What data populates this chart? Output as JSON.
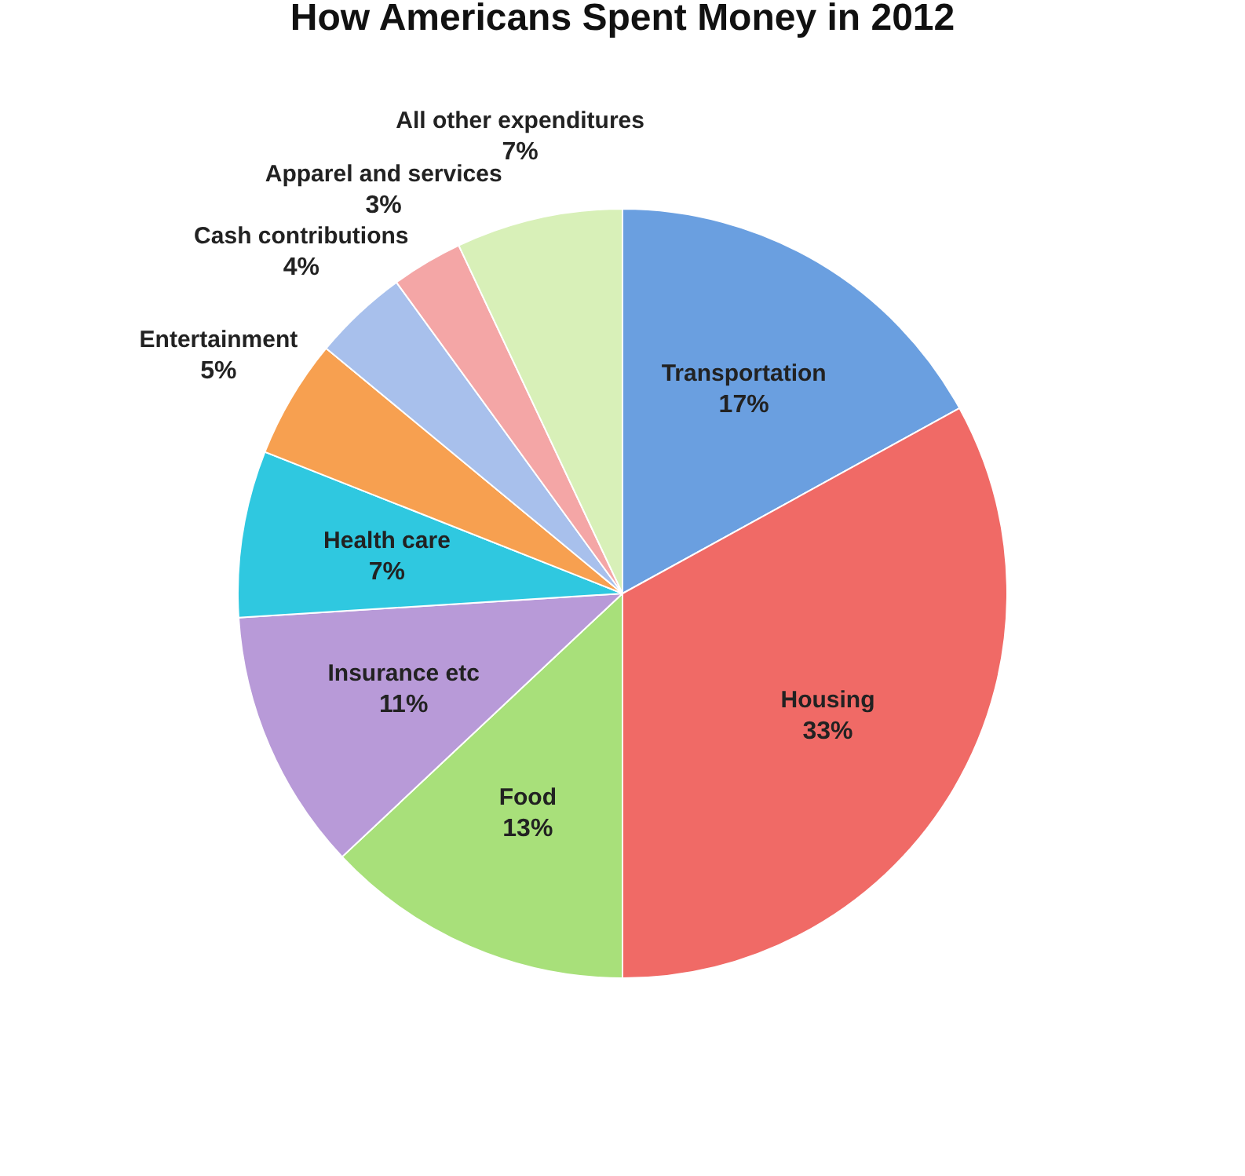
{
  "chart_data": {
    "type": "pie",
    "title": "How Americans Spent Money in 2012",
    "categories": [
      "Transportation",
      "Housing",
      "Food",
      "Insurance etc",
      "Health care",
      "Entertainment",
      "Cash contributions",
      "Apparel and services",
      "All other expenditures"
    ],
    "values": [
      17,
      33,
      13,
      11,
      7,
      5,
      4,
      3,
      7
    ],
    "colors": [
      "#6a9fe0",
      "#f06a66",
      "#a8e07a",
      "#b89ad8",
      "#2fc8e0",
      "#f7a050",
      "#a8c0ec",
      "#f4a6a6",
      "#d8f0b8"
    ],
    "value_labels": [
      "17%",
      "33%",
      "13%",
      "11%",
      "7%",
      "5%",
      "4%",
      "3%",
      "7%"
    ],
    "legend": false
  }
}
